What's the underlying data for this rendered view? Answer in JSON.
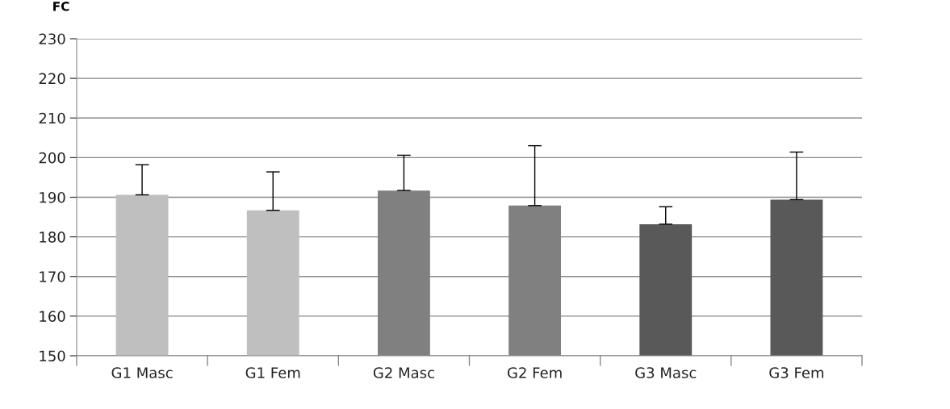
{
  "chart_data": {
    "type": "bar",
    "ylabel": "FC",
    "categories": [
      "G1 Masc",
      "G1 Fem",
      "G2 Masc",
      "G2 Fem",
      "G3 Masc",
      "G3 Fem"
    ],
    "values": [
      190.6,
      186.7,
      191.7,
      187.9,
      183.2,
      189.4
    ],
    "colors": [
      "#bfbfbf",
      "#bfbfbf",
      "#808080",
      "#808080",
      "#595959",
      "#595959"
    ],
    "errors": [
      [
        190.6,
        198.2
      ],
      [
        186.7,
        196.4
      ],
      [
        191.7,
        200.6
      ],
      [
        187.9,
        203.0
      ],
      [
        183.2,
        187.6
      ],
      [
        189.4,
        201.4
      ]
    ],
    "ylim": [
      150,
      230
    ],
    "yticks": [
      150,
      160,
      170,
      180,
      190,
      200,
      210,
      220,
      230
    ],
    "grid": "y"
  }
}
